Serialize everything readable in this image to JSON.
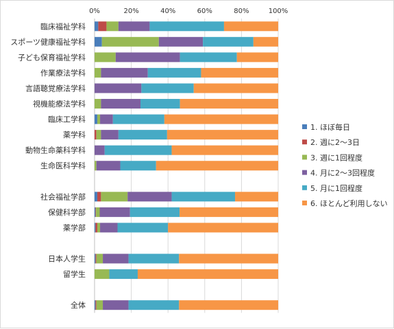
{
  "chart_data": {
    "type": "bar",
    "orientation": "horizontal",
    "stacked": true,
    "percent": true,
    "xlim": [
      0,
      100
    ],
    "x_ticks": [
      "0%",
      "20%",
      "40%",
      "60%",
      "80%",
      "100%"
    ],
    "x_tick_values": [
      0,
      20,
      40,
      60,
      80,
      100
    ],
    "gridlines": true,
    "legend_position": "right",
    "categories": [
      "臨床福祉学科",
      "スポーツ健康福祉学科",
      "子ども保育福祉学科",
      "作業療法学科",
      "言語聴覚療法学科",
      "視機能療法学科",
      "臨床工学科",
      "薬学科",
      "動物生命薬科学科",
      "生命医科学科",
      "",
      "社会福祉学部",
      "保健科学部",
      "薬学部",
      "",
      "日本人学生",
      "留学生",
      "",
      "全体"
    ],
    "series": [
      {
        "name": "1. ほぼ毎日",
        "color": "#4a7ebb",
        "values": [
          2,
          4,
          0,
          0,
          0,
          0,
          1.5,
          0,
          0,
          0,
          null,
          1.5,
          0.5,
          0.5,
          null,
          0.5,
          0,
          null,
          0.5
        ]
      },
      {
        "name": "2. 週に2～3日",
        "color": "#be4b48",
        "values": [
          4.5,
          0,
          0,
          0,
          0,
          0,
          0,
          1,
          0,
          0,
          null,
          2,
          0.3,
          1,
          null,
          0.5,
          0,
          null,
          0.5
        ]
      },
      {
        "name": "3. 週に1回程度",
        "color": "#98b954",
        "values": [
          6.5,
          31,
          11.5,
          3.5,
          0,
          3.5,
          1.5,
          2.5,
          0,
          1,
          null,
          14.5,
          2,
          1.5,
          null,
          3.5,
          8,
          null,
          3.5
        ]
      },
      {
        "name": "4. 月に2～3回程度",
        "color": "#7d60a0",
        "values": [
          17,
          24,
          35,
          25.5,
          25.5,
          21.5,
          7,
          9.5,
          5.5,
          13,
          null,
          24,
          16.5,
          9.5,
          null,
          14,
          0,
          null,
          14
        ]
      },
      {
        "name": "5. 月に1回程度",
        "color": "#46aac5",
        "values": [
          40.5,
          27.5,
          31,
          29,
          28.5,
          21.5,
          28,
          26.5,
          36.5,
          19.5,
          null,
          34.5,
          27,
          27.5,
          null,
          27.5,
          15.5,
          null,
          27.5
        ]
      },
      {
        "name": "6. ほとんど利用しない",
        "color": "#f79646",
        "values": [
          29.5,
          13.5,
          22.5,
          42,
          46,
          53.5,
          62,
          60.5,
          58,
          66.5,
          null,
          23.5,
          53.7,
          60,
          null,
          54,
          76.5,
          null,
          54
        ]
      }
    ]
  }
}
